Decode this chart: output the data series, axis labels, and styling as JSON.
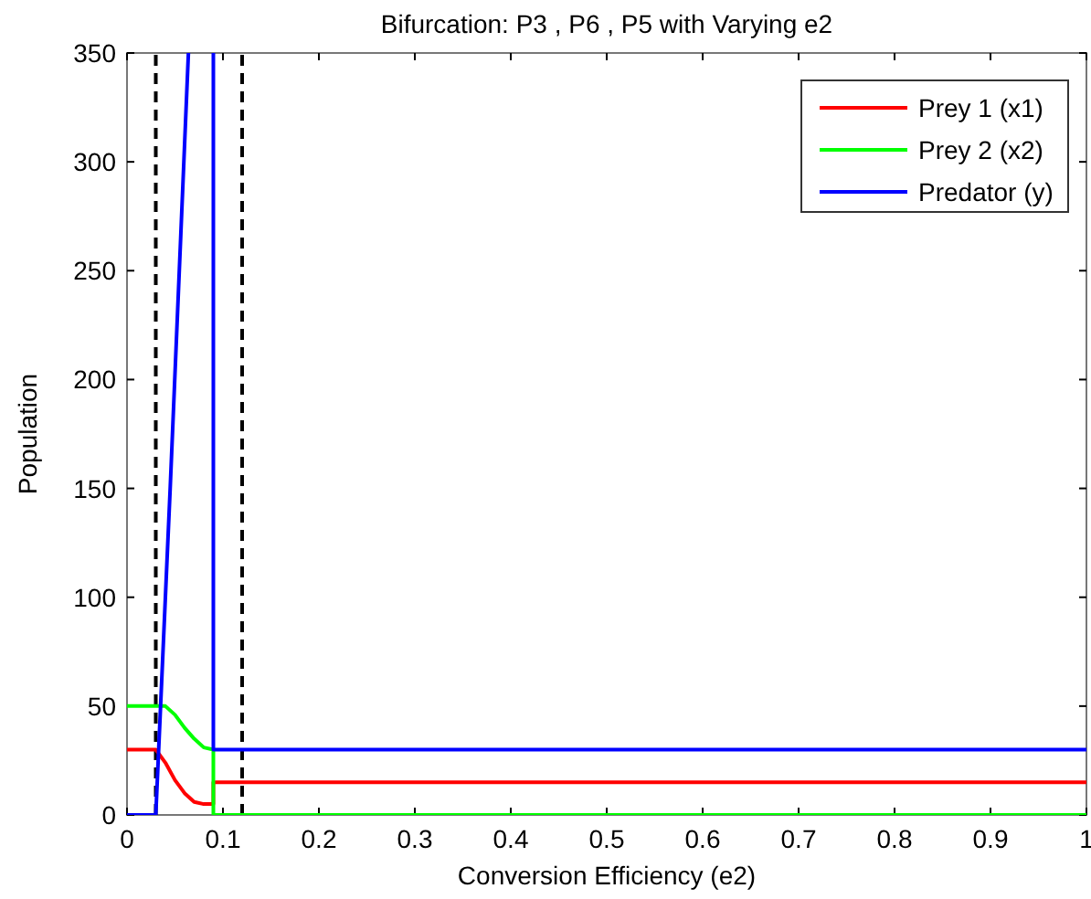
{
  "chart_data": {
    "type": "line",
    "title": "Bifurcation: P3 , P6 , P5 with Varying e2",
    "xlabel": "Conversion Efficiency (e2)",
    "ylabel": "Population",
    "xlim": [
      0,
      1
    ],
    "ylim": [
      0,
      350
    ],
    "xticks": [
      0,
      0.1,
      0.2,
      0.3,
      0.4,
      0.5,
      0.6,
      0.7,
      0.8,
      0.9,
      1
    ],
    "yticks": [
      0,
      50,
      100,
      150,
      200,
      250,
      300,
      350
    ],
    "series": [
      {
        "name": "Prey 1 (x1)",
        "color": "#ff0000",
        "x": [
          0,
          0.03,
          0.04,
          0.05,
          0.06,
          0.07,
          0.08,
          0.09,
          0.09,
          1
        ],
        "values": [
          30,
          30,
          24,
          16,
          10,
          6,
          5,
          5,
          15,
          15
        ]
      },
      {
        "name": "Prey 2 (x2)",
        "color": "#00ff00",
        "x": [
          0,
          0.04,
          0.05,
          0.06,
          0.07,
          0.08,
          0.09,
          0.09,
          1
        ],
        "values": [
          50,
          50,
          46,
          40,
          35,
          31,
          30,
          0,
          0
        ]
      },
      {
        "name": "Predator (y)",
        "color": "#0000ff",
        "x": [
          0,
          0.03,
          0.045,
          0.064
        ],
        "values": [
          0,
          0,
          150,
          350
        ]
      },
      {
        "color": "#0000ff",
        "x": [
          0.09,
          0.09,
          1
        ],
        "values": [
          350,
          30,
          30
        ]
      }
    ],
    "ref_lines": [
      {
        "axis": "x",
        "value": 0.03,
        "color": "#000000",
        "line_style": "dashed"
      },
      {
        "axis": "x",
        "value": 0.12,
        "color": "#000000",
        "line_style": "dashed"
      }
    ],
    "legend": "top right",
    "grid": false,
    "marker": "none",
    "line_style": "solid"
  }
}
